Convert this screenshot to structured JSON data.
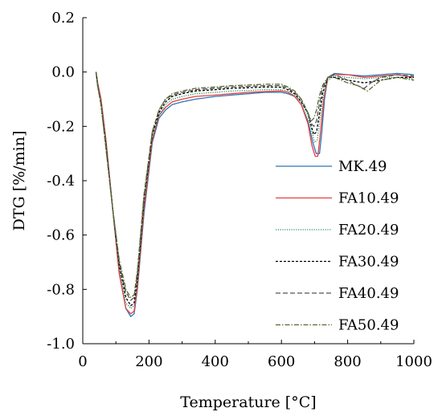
{
  "chart_data": {
    "type": "line",
    "title": "",
    "xlabel": "Temperature [°C]",
    "ylabel": "DTG [%/min]",
    "xlim": [
      0,
      1000
    ],
    "ylim": [
      -1.0,
      0.2
    ],
    "x_ticks": [
      0,
      200,
      400,
      600,
      800,
      1000
    ],
    "x_tick_labels": [
      "0",
      "200",
      "400",
      "600",
      "800",
      "1000"
    ],
    "y_ticks": [
      0.2,
      0.0,
      -0.2,
      -0.4,
      -0.6,
      -0.8,
      -1.0
    ],
    "y_tick_labels": [
      "0.2",
      "0.0",
      "-0.2",
      "-0.4",
      "-0.6",
      "-0.8",
      "-1.0"
    ],
    "grid": false,
    "legend_position": "lower-right",
    "series": [
      {
        "name": "MK.49",
        "color": "#2e75b6",
        "dash": "solid",
        "x": [
          40,
          45,
          55,
          70,
          90,
          110,
          130,
          145,
          155,
          165,
          185,
          210,
          230,
          250,
          270,
          300,
          340,
          400,
          450,
          500,
          550,
          600,
          620,
          640,
          660,
          680,
          695,
          705,
          715,
          722,
          730,
          740,
          760,
          800,
          850,
          900,
          950,
          1000
        ],
        "y": [
          0.0,
          -0.04,
          -0.1,
          -0.25,
          -0.5,
          -0.74,
          -0.87,
          -0.9,
          -0.89,
          -0.8,
          -0.52,
          -0.26,
          -0.17,
          -0.14,
          -0.12,
          -0.11,
          -0.1,
          -0.09,
          -0.085,
          -0.08,
          -0.075,
          -0.075,
          -0.08,
          -0.09,
          -0.12,
          -0.18,
          -0.26,
          -0.3,
          -0.3,
          -0.22,
          -0.1,
          -0.02,
          -0.005,
          -0.01,
          -0.015,
          -0.01,
          -0.005,
          -0.01
        ]
      },
      {
        "name": "FA10.49",
        "color": "#e84040",
        "dash": "solid",
        "x": [
          40,
          45,
          55,
          70,
          90,
          110,
          130,
          145,
          155,
          165,
          185,
          210,
          230,
          250,
          270,
          300,
          340,
          400,
          450,
          500,
          550,
          600,
          620,
          640,
          660,
          680,
          692,
          702,
          710,
          718,
          728,
          740,
          760,
          800,
          850,
          900,
          950,
          1000
        ],
        "y": [
          0.0,
          -0.04,
          -0.1,
          -0.25,
          -0.5,
          -0.74,
          -0.87,
          -0.89,
          -0.88,
          -0.79,
          -0.5,
          -0.25,
          -0.16,
          -0.13,
          -0.11,
          -0.1,
          -0.09,
          -0.085,
          -0.08,
          -0.075,
          -0.072,
          -0.07,
          -0.075,
          -0.09,
          -0.12,
          -0.19,
          -0.27,
          -0.31,
          -0.31,
          -0.22,
          -0.1,
          -0.02,
          -0.01,
          -0.01,
          -0.02,
          -0.015,
          -0.01,
          -0.02
        ]
      },
      {
        "name": "FA20.49",
        "color": "#2e8b57",
        "dash": "dotted",
        "x": [
          40,
          45,
          55,
          70,
          90,
          110,
          130,
          145,
          155,
          165,
          185,
          210,
          230,
          250,
          270,
          300,
          340,
          400,
          450,
          500,
          550,
          600,
          620,
          640,
          660,
          680,
          692,
          700,
          708,
          716,
          726,
          740,
          760,
          800,
          850,
          900,
          950,
          1000
        ],
        "y": [
          0.0,
          -0.05,
          -0.11,
          -0.26,
          -0.5,
          -0.72,
          -0.85,
          -0.87,
          -0.86,
          -0.77,
          -0.48,
          -0.24,
          -0.16,
          -0.12,
          -0.1,
          -0.09,
          -0.08,
          -0.075,
          -0.07,
          -0.068,
          -0.065,
          -0.065,
          -0.07,
          -0.085,
          -0.11,
          -0.16,
          -0.22,
          -0.26,
          -0.25,
          -0.18,
          -0.09,
          -0.03,
          -0.015,
          -0.02,
          -0.025,
          -0.02,
          -0.02,
          -0.025
        ]
      },
      {
        "name": "FA30.49",
        "color": "#000000",
        "dash": "fine-dash",
        "x": [
          40,
          45,
          55,
          70,
          90,
          110,
          130,
          145,
          155,
          165,
          185,
          210,
          230,
          250,
          270,
          300,
          340,
          400,
          450,
          500,
          550,
          600,
          620,
          640,
          660,
          680,
          690,
          698,
          706,
          714,
          724,
          740,
          760,
          800,
          850,
          900,
          950,
          1000
        ],
        "y": [
          0.0,
          -0.05,
          -0.12,
          -0.27,
          -0.5,
          -0.71,
          -0.83,
          -0.86,
          -0.85,
          -0.76,
          -0.47,
          -0.23,
          -0.15,
          -0.11,
          -0.09,
          -0.08,
          -0.07,
          -0.065,
          -0.06,
          -0.058,
          -0.055,
          -0.056,
          -0.065,
          -0.08,
          -0.11,
          -0.15,
          -0.2,
          -0.23,
          -0.22,
          -0.16,
          -0.08,
          -0.02,
          -0.02,
          -0.03,
          -0.04,
          -0.03,
          -0.02,
          -0.02
        ]
      },
      {
        "name": "FA40.49",
        "color": "#555555",
        "dash": "dashed",
        "x": [
          40,
          45,
          55,
          70,
          90,
          110,
          130,
          145,
          155,
          165,
          185,
          210,
          230,
          250,
          270,
          300,
          340,
          400,
          450,
          500,
          550,
          600,
          620,
          640,
          660,
          680,
          690,
          698,
          706,
          714,
          724,
          740,
          760,
          800,
          820,
          850,
          870,
          900,
          950,
          1000
        ],
        "y": [
          0.0,
          -0.05,
          -0.12,
          -0.28,
          -0.5,
          -0.7,
          -0.81,
          -0.84,
          -0.83,
          -0.74,
          -0.46,
          -0.22,
          -0.14,
          -0.1,
          -0.085,
          -0.075,
          -0.065,
          -0.06,
          -0.055,
          -0.053,
          -0.05,
          -0.05,
          -0.06,
          -0.075,
          -0.1,
          -0.15,
          -0.19,
          -0.2,
          -0.18,
          -0.12,
          -0.06,
          -0.02,
          -0.01,
          -0.03,
          -0.045,
          -0.06,
          -0.04,
          -0.02,
          -0.01,
          -0.015
        ]
      },
      {
        "name": "FA50.49",
        "color": "#556b2f",
        "dash": "dash-dot",
        "x": [
          40,
          45,
          55,
          70,
          90,
          110,
          130,
          145,
          155,
          165,
          185,
          210,
          230,
          250,
          270,
          300,
          340,
          400,
          450,
          500,
          550,
          600,
          620,
          640,
          660,
          680,
          690,
          698,
          706,
          714,
          724,
          740,
          760,
          800,
          830,
          860,
          880,
          900,
          950,
          1000
        ],
        "y": [
          0.0,
          -0.05,
          -0.12,
          -0.28,
          -0.5,
          -0.69,
          -0.8,
          -0.83,
          -0.82,
          -0.73,
          -0.45,
          -0.22,
          -0.14,
          -0.1,
          -0.08,
          -0.07,
          -0.06,
          -0.055,
          -0.05,
          -0.048,
          -0.045,
          -0.045,
          -0.055,
          -0.07,
          -0.1,
          -0.15,
          -0.18,
          -0.17,
          -0.14,
          -0.09,
          -0.05,
          -0.02,
          -0.02,
          -0.04,
          -0.05,
          -0.07,
          -0.05,
          -0.03,
          -0.02,
          -0.03
        ]
      }
    ]
  }
}
